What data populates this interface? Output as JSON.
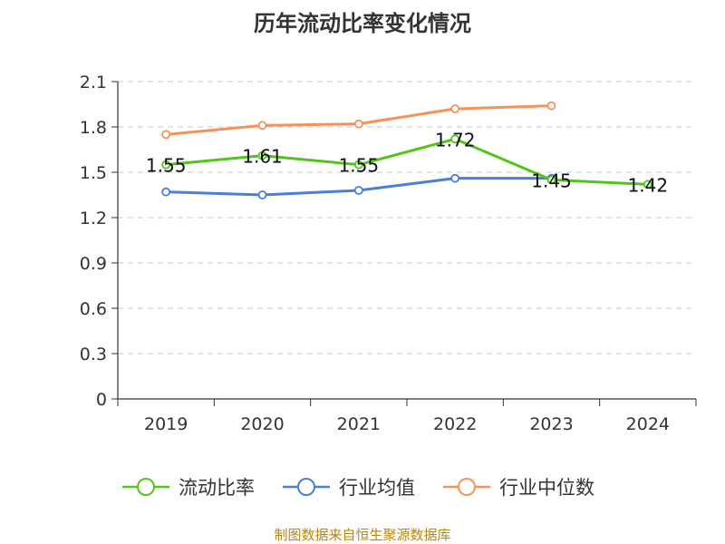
{
  "chart_data": {
    "type": "line",
    "title": "历年流动比率变化情况",
    "categories": [
      "2019",
      "2020",
      "2021",
      "2022",
      "2023",
      "2024"
    ],
    "y_ticks": [
      "0",
      "0.3",
      "0.6",
      "0.9",
      "1.2",
      "1.5",
      "1.8",
      "2.1"
    ],
    "ylim": [
      0,
      2.1
    ],
    "grid": true,
    "legend_position": "bottom",
    "series": [
      {
        "name": "流动比率",
        "color": "#52c41a",
        "values": [
          1.55,
          1.61,
          1.55,
          1.72,
          1.45,
          1.42
        ],
        "labels": [
          "1.55",
          "1.61",
          "1.55",
          "1.72",
          "1.45",
          "1.42"
        ]
      },
      {
        "name": "行业均值",
        "color": "#4a7fd6",
        "values": [
          1.37,
          1.35,
          1.38,
          1.46,
          1.46,
          null
        ]
      },
      {
        "name": "行业中位数",
        "color": "#f5925a",
        "values": [
          1.75,
          1.81,
          1.82,
          1.92,
          1.94,
          null
        ]
      }
    ]
  },
  "source_text": "制图数据来自恒生聚源数据库"
}
